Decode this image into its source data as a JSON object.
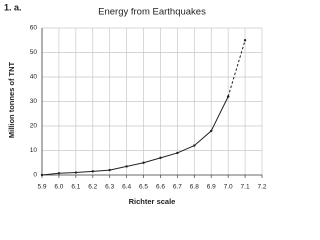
{
  "chart_data": {
    "type": "line",
    "panel_label": "1. a.",
    "title": "Energy from Earthquakes",
    "x_label": "Richter scale",
    "y_label": "Million tonnes of TNT",
    "xlim": [
      5.9,
      7.2
    ],
    "xticks": [
      5.9,
      {
        "value": 6,
        "label": "6.0"
      },
      6.1,
      6.2,
      6.3,
      6.4,
      6.5,
      6.6,
      6.7,
      6.8,
      6.9,
      {
        "value": 7,
        "label": "7.0"
      },
      7.1,
      7.2
    ],
    "ylim": [
      0,
      60
    ],
    "yticks": [
      0,
      10,
      20,
      30,
      40,
      50,
      60
    ],
    "grid": true,
    "series": [
      {
        "color": "#222222",
        "dash": false,
        "x": [
          5.9,
          6.0,
          6.1,
          6.2,
          6.3,
          6.4,
          6.5,
          6.6,
          6.7,
          6.8,
          6.9,
          7.0
        ],
        "values": [
          0,
          0.7,
          1,
          1.5,
          2,
          3.5,
          5,
          7,
          9,
          12,
          18,
          32
        ]
      },
      {
        "color": "#222222",
        "dash": true,
        "x": [
          7.0,
          7.1
        ],
        "values": [
          32,
          55
        ]
      }
    ]
  }
}
